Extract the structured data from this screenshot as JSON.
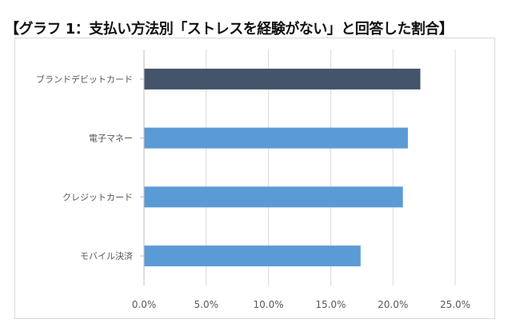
{
  "title": "【グラフ 1：支払い方法別「ストレスを経験がない」と回答した割合】",
  "chart_data": {
    "type": "bar",
    "orientation": "horizontal",
    "title": "【グラフ 1：支払い方法別「ストレスを経験がない」と回答した割合】",
    "categories": [
      "ブランドデビットカード",
      "電子マネー",
      "クレジットカード",
      "モバイル決済"
    ],
    "values": [
      22.2,
      21.2,
      20.8,
      17.4
    ],
    "value_unit": "%",
    "xlim": [
      0,
      25
    ],
    "xticks": [
      "0.0%",
      "5.0%",
      "10.0%",
      "15.0%",
      "20.0%",
      "25.0%"
    ],
    "grid": true,
    "legend": "none",
    "colors": {
      "highlight": "#44546a",
      "default": "#5b9bd5"
    },
    "highlight_index": 0
  }
}
